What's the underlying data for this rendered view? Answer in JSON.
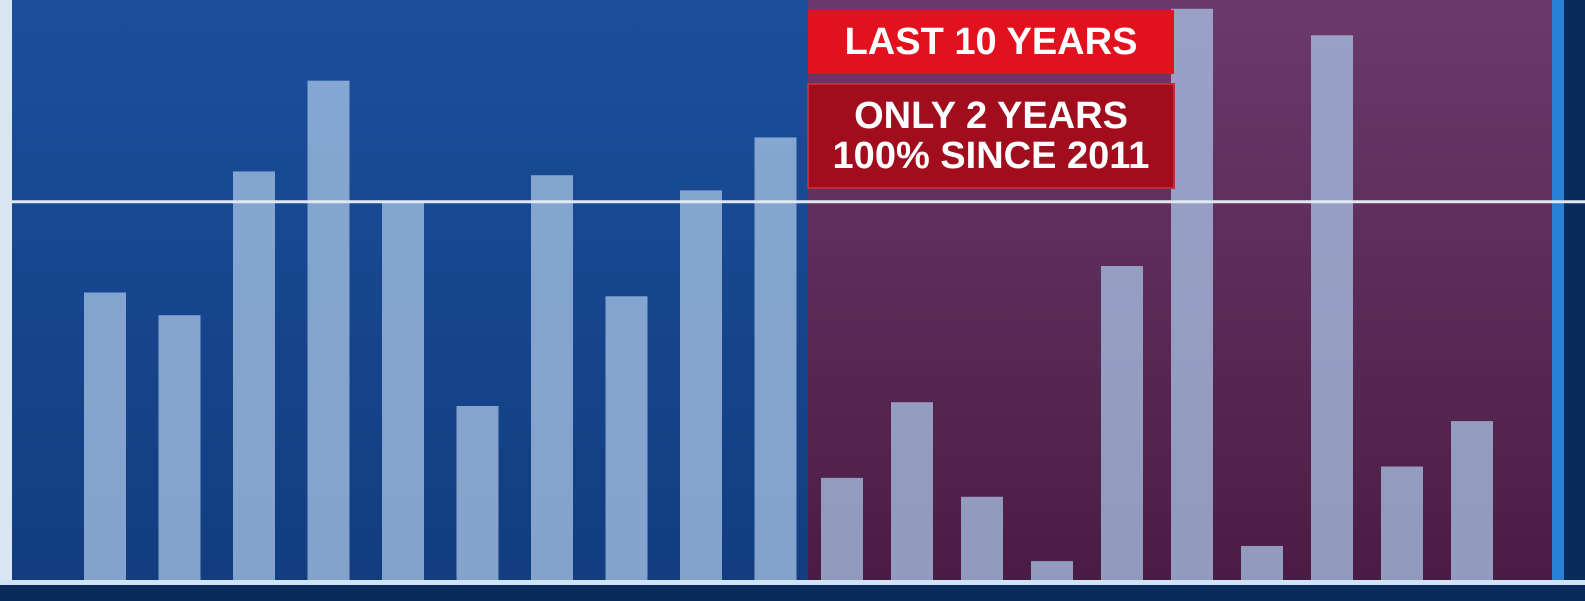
{
  "chart_data": {
    "type": "bar",
    "categories": [
      null,
      null,
      null,
      null,
      null,
      null,
      null,
      null,
      null,
      null,
      null,
      null,
      null,
      null,
      null,
      null,
      null,
      null,
      null,
      null
    ],
    "values": [
      76,
      70,
      108,
      132,
      100,
      46,
      107,
      75,
      103,
      117,
      27,
      47,
      22,
      5,
      83,
      151,
      9,
      144,
      30,
      42
    ],
    "ylim": [
      0,
      152
    ],
    "reference_line": 100,
    "split": 10,
    "panel_colors": [
      "#1b4f9c",
      "#6b3a6c"
    ],
    "bar_color": "#a9c4e6",
    "annotations": [
      {
        "text": "LAST 10 YEARS"
      },
      {
        "lines": [
          "ONLY 2 YEARS",
          "100% SINCE 2011"
        ]
      }
    ]
  }
}
